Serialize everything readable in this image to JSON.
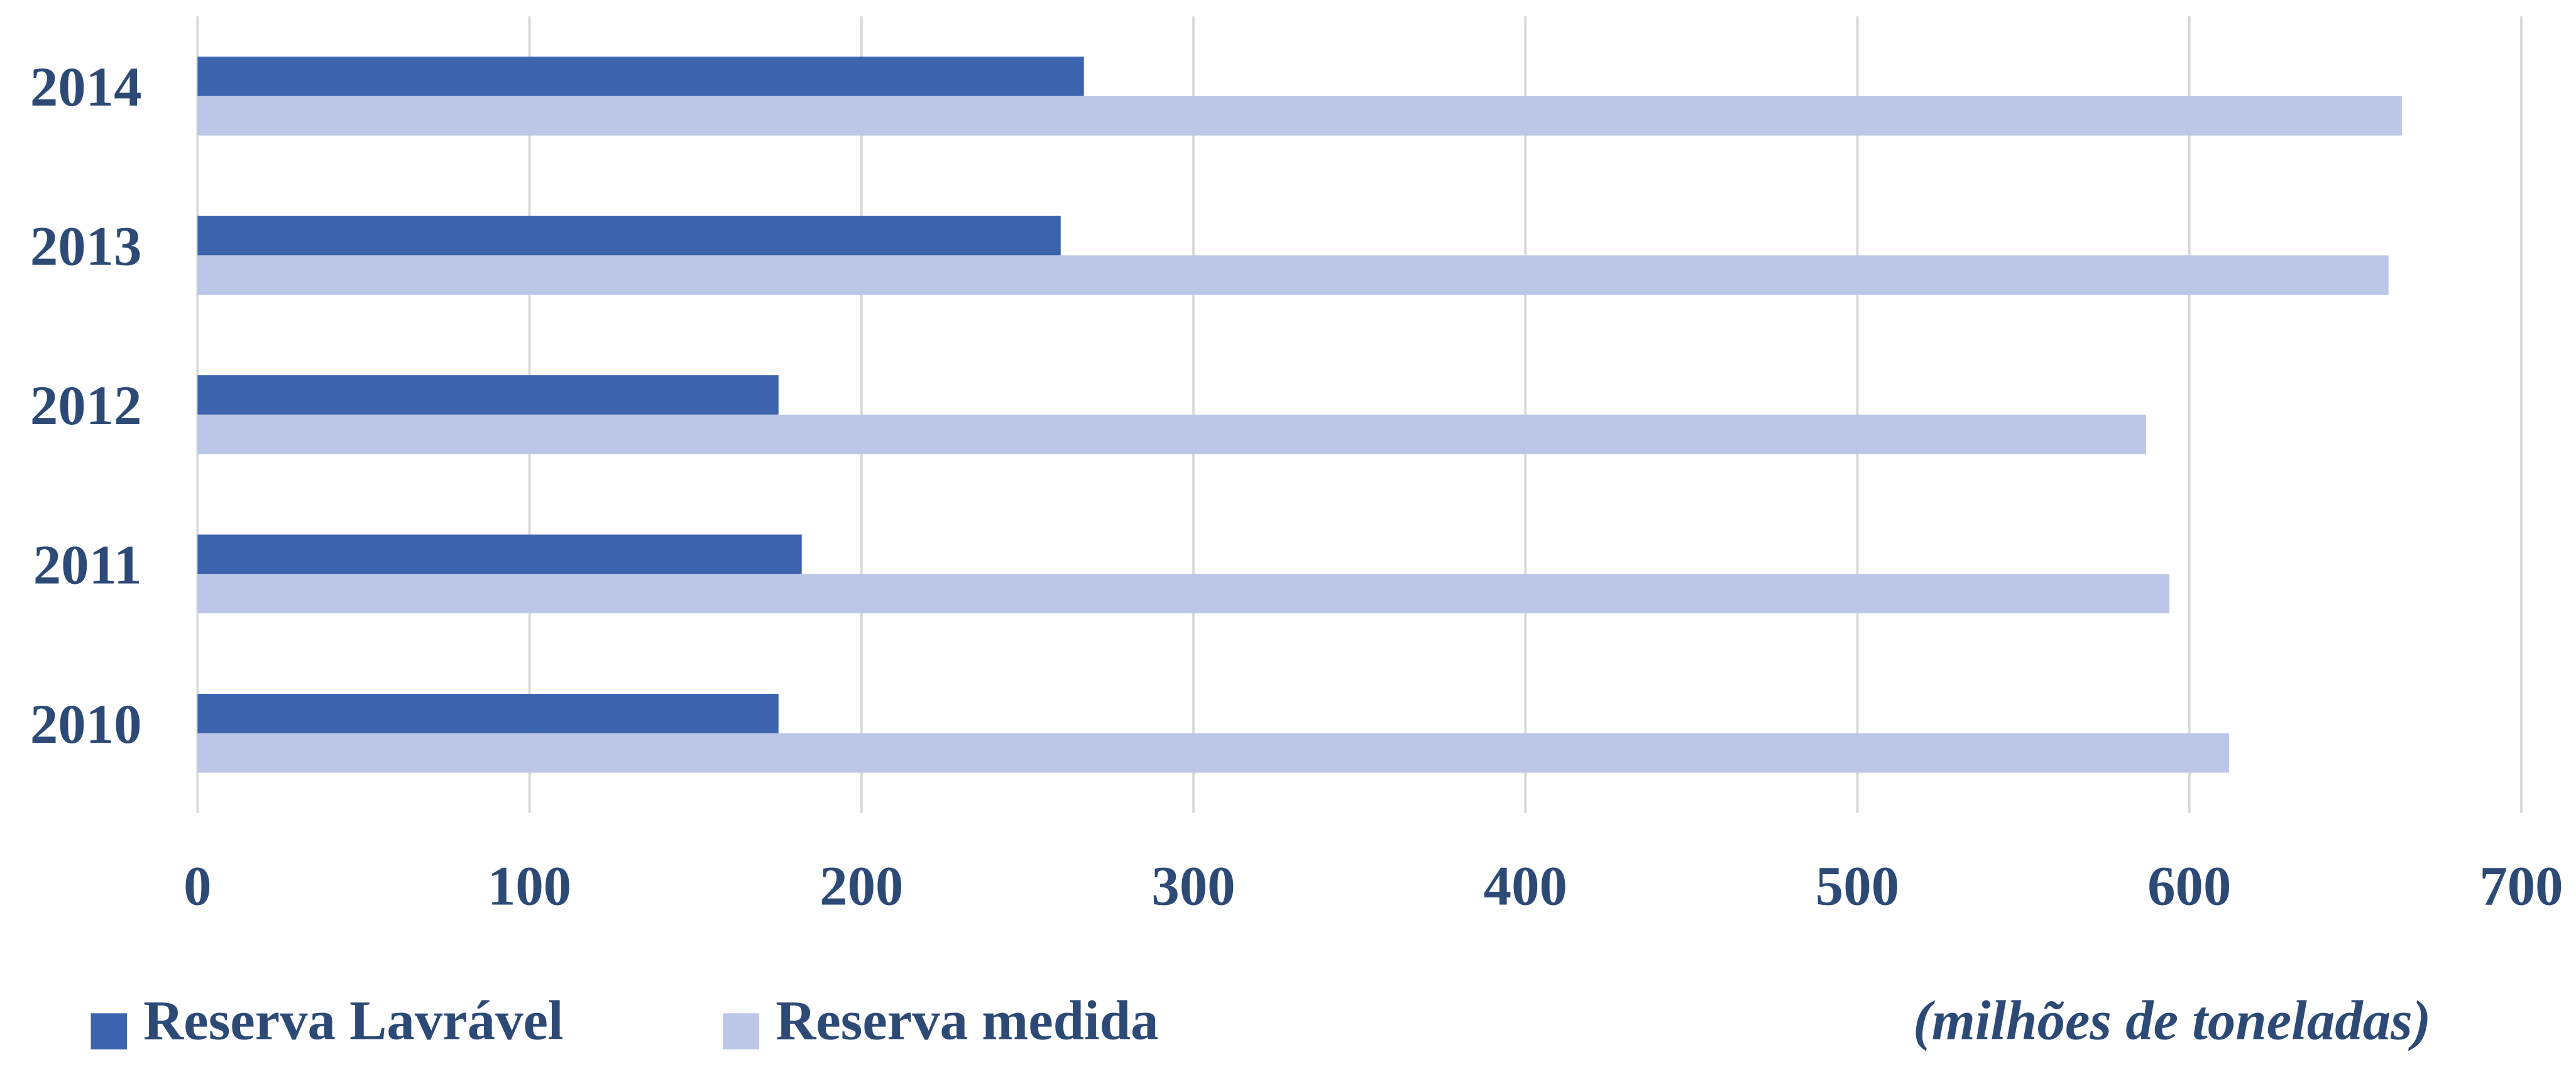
{
  "chart_data": {
    "type": "bar",
    "orientation": "horizontal",
    "categories": [
      "2014",
      "2013",
      "2012",
      "2011",
      "2010"
    ],
    "series": [
      {
        "name": "Reserva Lavrável",
        "color": "#3c64ae",
        "values": [
          267,
          260,
          175,
          182,
          175
        ]
      },
      {
        "name": "Reserva medida",
        "color": "#bcc6e6",
        "values": [
          664,
          660,
          587,
          594,
          612
        ]
      }
    ],
    "xlim": [
      0,
      700
    ],
    "xticks": [
      0,
      100,
      200,
      300,
      400,
      500,
      600,
      700
    ],
    "unit_note": "(milhões de toneladas)",
    "grid": true,
    "legend": "bottom-left"
  }
}
